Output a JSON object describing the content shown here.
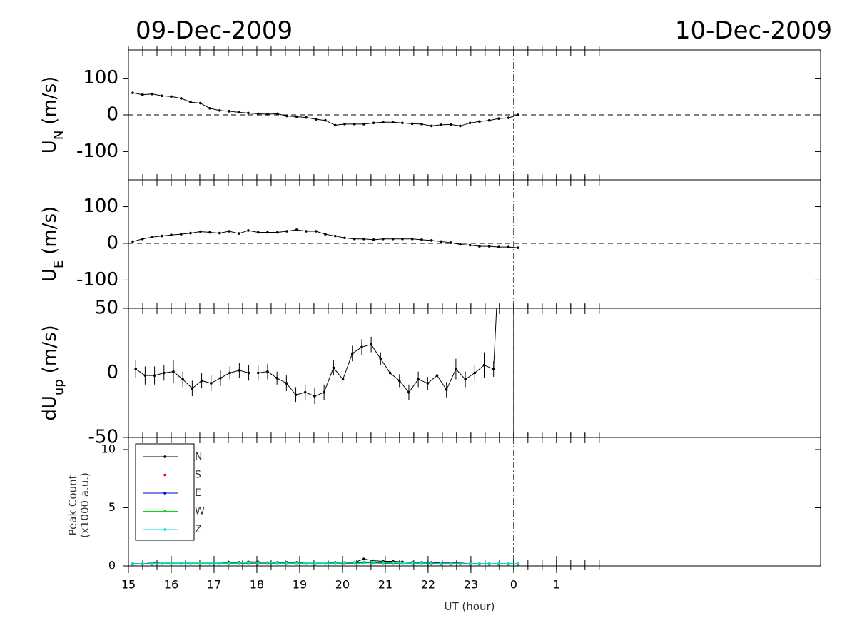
{
  "titles": {
    "left": "09-Dec-2009",
    "right": "10-Dec-2009"
  },
  "chart_data": [
    {
      "type": "line",
      "ylabel": "U",
      "ylabel_sub": "N",
      "ylabel_unit": "(m/s)",
      "xlim": [
        15,
        31.17
      ],
      "ylim": [
        -177,
        177
      ],
      "yticks": [
        -100,
        0,
        100
      ],
      "zero_line": true,
      "vline": 24,
      "xminor_step": 0.3333,
      "xminor_lim": [
        15,
        26.33
      ],
      "x": [
        15.1,
        15.33,
        15.55,
        15.78,
        16.0,
        16.23,
        16.45,
        16.68,
        16.9,
        17.13,
        17.35,
        17.58,
        17.8,
        18.03,
        18.25,
        18.48,
        18.7,
        18.93,
        19.15,
        19.38,
        19.6,
        19.83,
        20.05,
        20.28,
        20.5,
        20.73,
        20.95,
        21.18,
        21.4,
        21.63,
        21.85,
        22.08,
        22.3,
        22.53,
        22.75,
        22.98,
        23.2,
        23.43,
        23.65,
        23.88,
        24.1
      ],
      "series": [
        {
          "color": "#000000",
          "values": [
            60,
            55,
            57,
            52,
            50,
            45,
            35,
            32,
            18,
            12,
            10,
            7,
            5,
            3,
            2,
            3,
            -3,
            -5,
            -7,
            -12,
            -15,
            -28,
            -25,
            -25,
            -25,
            -22,
            -20,
            -20,
            -22,
            -24,
            -25,
            -30,
            -27,
            -26,
            -30,
            -22,
            -18,
            -15,
            -10,
            -8,
            0
          ]
        }
      ]
    },
    {
      "type": "line",
      "ylabel": "U",
      "ylabel_sub": "E",
      "ylabel_unit": "(m/s)",
      "xlim": [
        15,
        31.17
      ],
      "ylim": [
        -177,
        173
      ],
      "yticks": [
        -100,
        0,
        100
      ],
      "zero_line": true,
      "vline": 24,
      "xminor_step": 0.3333,
      "xminor_lim": [
        15,
        26.33
      ],
      "x": [
        15.1,
        15.33,
        15.55,
        15.78,
        16.0,
        16.23,
        16.45,
        16.68,
        16.9,
        17.13,
        17.35,
        17.58,
        17.8,
        18.03,
        18.25,
        18.48,
        18.7,
        18.93,
        19.15,
        19.38,
        19.6,
        19.83,
        20.05,
        20.28,
        20.5,
        20.73,
        20.95,
        21.18,
        21.4,
        21.63,
        21.85,
        22.08,
        22.3,
        22.53,
        22.75,
        22.98,
        23.2,
        23.43,
        23.65,
        23.88,
        24.1
      ],
      "series": [
        {
          "color": "#000000",
          "values": [
            5,
            12,
            17,
            20,
            23,
            25,
            28,
            32,
            30,
            28,
            33,
            27,
            35,
            30,
            30,
            30,
            33,
            37,
            33,
            33,
            25,
            20,
            15,
            12,
            12,
            10,
            12,
            12,
            12,
            12,
            10,
            8,
            5,
            2,
            -3,
            -5,
            -8,
            -8,
            -10,
            -10,
            -12
          ]
        }
      ]
    },
    {
      "type": "errorline",
      "ylabel": "dU",
      "ylabel_sub": "up",
      "ylabel_unit": "(m/s)",
      "xlim": [
        15,
        31.17
      ],
      "ylim": [
        -50,
        50
      ],
      "yticks": [
        -50,
        0,
        50
      ],
      "zero_line": true,
      "vline": 24,
      "xminor_step": 0.3333,
      "xminor_lim": [
        15,
        26.33
      ],
      "x": [
        15.17,
        15.39,
        15.61,
        15.83,
        16.05,
        16.27,
        16.49,
        16.71,
        16.93,
        17.15,
        17.37,
        17.59,
        17.81,
        18.03,
        18.25,
        18.47,
        18.69,
        18.91,
        19.13,
        19.35,
        19.57,
        19.79,
        20.01,
        20.23,
        20.45,
        20.67,
        20.89,
        21.11,
        21.33,
        21.55,
        21.77,
        21.99,
        22.21,
        22.43,
        22.65,
        22.87,
        23.09,
        23.31,
        23.53,
        23.6,
        24.0,
        24.0
      ],
      "series": [
        {
          "color": "#000000",
          "values": [
            3,
            -2,
            -2,
            0,
            1,
            -5,
            -12,
            -6,
            -8,
            -4,
            0,
            2,
            0,
            0,
            1,
            -4,
            -8,
            -17,
            -15,
            -18,
            -15,
            4,
            -5,
            15,
            20,
            22,
            11,
            0,
            -6,
            -15,
            -5,
            -8,
            -2,
            -13,
            3,
            -5,
            0,
            6,
            3,
            50,
            50,
            -50
          ],
          "errors": [
            7,
            7,
            7,
            6,
            9,
            6,
            6,
            6,
            6,
            6,
            5,
            6,
            6,
            6,
            6,
            5,
            6,
            6,
            6,
            6,
            6,
            6,
            5,
            6,
            6,
            6,
            5,
            5,
            5,
            6,
            6,
            5,
            6,
            6,
            8,
            6,
            6,
            10,
            6,
            null,
            null,
            null
          ]
        }
      ]
    },
    {
      "type": "line",
      "ylabel": "Peak Count",
      "ylabel_unit": "(x1000 a.u.)",
      "xlabel": "UT (hour)",
      "xlim": [
        15,
        31.17
      ],
      "ylim": [
        0,
        11.04
      ],
      "yticks": [
        0,
        5,
        10
      ],
      "xticks": [
        15,
        16,
        17,
        18,
        19,
        20,
        21,
        22,
        23,
        {
          "value": 24,
          "label": "0"
        },
        {
          "value": 25,
          "label": "1"
        }
      ],
      "vline": 24,
      "xminor_step": 0.3333,
      "xminor_lim": [
        15,
        26.33
      ],
      "legend": "upper left",
      "x": [
        15.1,
        15.33,
        15.55,
        15.78,
        16.0,
        16.23,
        16.45,
        16.68,
        16.9,
        17.13,
        17.35,
        17.58,
        17.8,
        18.03,
        18.25,
        18.48,
        18.7,
        18.93,
        19.15,
        19.38,
        19.6,
        19.83,
        20.05,
        20.28,
        20.5,
        20.73,
        20.95,
        21.18,
        21.4,
        21.63,
        21.85,
        22.08,
        22.3,
        22.53,
        22.75,
        22.98,
        23.2,
        23.43,
        23.65,
        23.88,
        24.1
      ],
      "series": [
        {
          "name": "N",
          "color": "#000000",
          "values": [
            0.2,
            0.2,
            0.25,
            0.25,
            0.25,
            0.25,
            0.25,
            0.25,
            0.25,
            0.25,
            0.3,
            0.3,
            0.35,
            0.35,
            0.3,
            0.3,
            0.3,
            0.3,
            0.25,
            0.25,
            0.25,
            0.3,
            0.3,
            0.3,
            0.6,
            0.45,
            0.4,
            0.4,
            0.35,
            0.3,
            0.3,
            0.3,
            0.25,
            0.25,
            0.25,
            0.2,
            0.2,
            0.2,
            0.2,
            0.2,
            0.2
          ]
        },
        {
          "name": "S",
          "color": "#ff0000",
          "values": [
            0.2,
            0.2,
            0.2,
            0.2,
            0.2,
            0.2,
            0.2,
            0.2,
            0.2,
            0.2,
            0.2,
            0.2,
            0.25,
            0.25,
            0.25,
            0.2,
            0.2,
            0.2,
            0.2,
            0.2,
            0.2,
            0.2,
            0.25,
            0.25,
            0.3,
            0.3,
            0.25,
            0.25,
            0.2,
            0.2,
            0.2,
            0.2,
            0.2,
            0.2,
            0.2,
            0.2,
            0.2,
            0.15,
            0.15,
            0.15,
            0.15
          ]
        },
        {
          "name": "E",
          "color": "#0000cc",
          "values": [
            0.15,
            0.15,
            0.2,
            0.2,
            0.2,
            0.2,
            0.2,
            0.2,
            0.2,
            0.2,
            0.2,
            0.2,
            0.2,
            0.2,
            0.2,
            0.2,
            0.2,
            0.2,
            0.2,
            0.2,
            0.2,
            0.2,
            0.2,
            0.25,
            0.3,
            0.25,
            0.25,
            0.2,
            0.2,
            0.2,
            0.2,
            0.2,
            0.2,
            0.2,
            0.2,
            0.15,
            0.15,
            0.15,
            0.15,
            0.15,
            0.15
          ]
        },
        {
          "name": "W",
          "color": "#00dd00",
          "values": [
            0.15,
            0.15,
            0.15,
            0.2,
            0.2,
            0.2,
            0.2,
            0.2,
            0.2,
            0.2,
            0.2,
            0.2,
            0.2,
            0.2,
            0.2,
            0.2,
            0.2,
            0.2,
            0.2,
            0.2,
            0.2,
            0.2,
            0.2,
            0.2,
            0.25,
            0.25,
            0.2,
            0.2,
            0.2,
            0.2,
            0.2,
            0.15,
            0.15,
            0.15,
            0.15,
            0.15,
            0.15,
            0.15,
            0.15,
            0.15,
            0.15
          ]
        },
        {
          "name": "Z",
          "color": "#00e5e5",
          "values": [
            0.2,
            0.2,
            0.2,
            0.25,
            0.25,
            0.25,
            0.25,
            0.25,
            0.25,
            0.25,
            0.25,
            0.25,
            0.3,
            0.3,
            0.3,
            0.25,
            0.25,
            0.25,
            0.25,
            0.25,
            0.25,
            0.25,
            0.3,
            0.3,
            0.35,
            0.35,
            0.3,
            0.3,
            0.25,
            0.25,
            0.25,
            0.25,
            0.2,
            0.2,
            0.2,
            0.2,
            0.2,
            0.2,
            0.2,
            0.2,
            0.2
          ]
        }
      ]
    }
  ]
}
